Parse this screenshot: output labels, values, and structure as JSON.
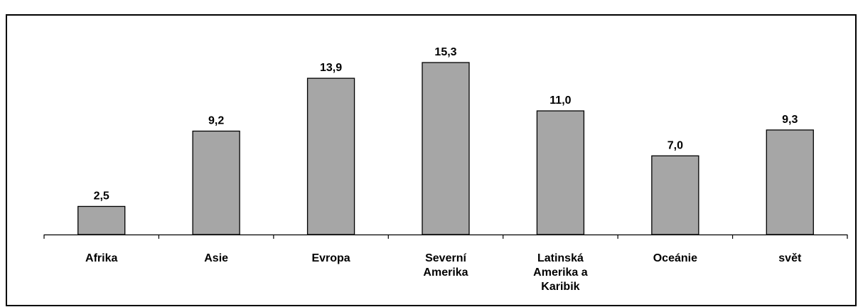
{
  "header": {
    "title": ""
  },
  "chart_data": {
    "type": "bar",
    "title": "",
    "xlabel": "",
    "ylabel": "",
    "categories": [
      "Afrika",
      "Asie",
      "Evropa",
      "Severní Amerika",
      "Latinská Amerika a Karibik",
      "Oceánie",
      "svět"
    ],
    "category_lines": [
      [
        "Afrika"
      ],
      [
        "Asie"
      ],
      [
        "Evropa"
      ],
      [
        "Severní",
        "Amerika"
      ],
      [
        "Latinská",
        "Amerika a",
        "Karibik"
      ],
      [
        "Oceánie"
      ],
      [
        "svět"
      ]
    ],
    "values": [
      2.5,
      9.2,
      13.9,
      15.3,
      11.0,
      7.0,
      9.3
    ],
    "value_labels": [
      "2,5",
      "9,2",
      "13,9",
      "15,3",
      "11,0",
      "7,0",
      "9,3"
    ],
    "ylim": [
      0,
      16.5
    ],
    "grid": false,
    "legend": "none",
    "colors": {
      "bar_fill": "#a6a6a6",
      "bar_stroke": "#000000",
      "axis": "#000000",
      "text": "#000000"
    }
  }
}
